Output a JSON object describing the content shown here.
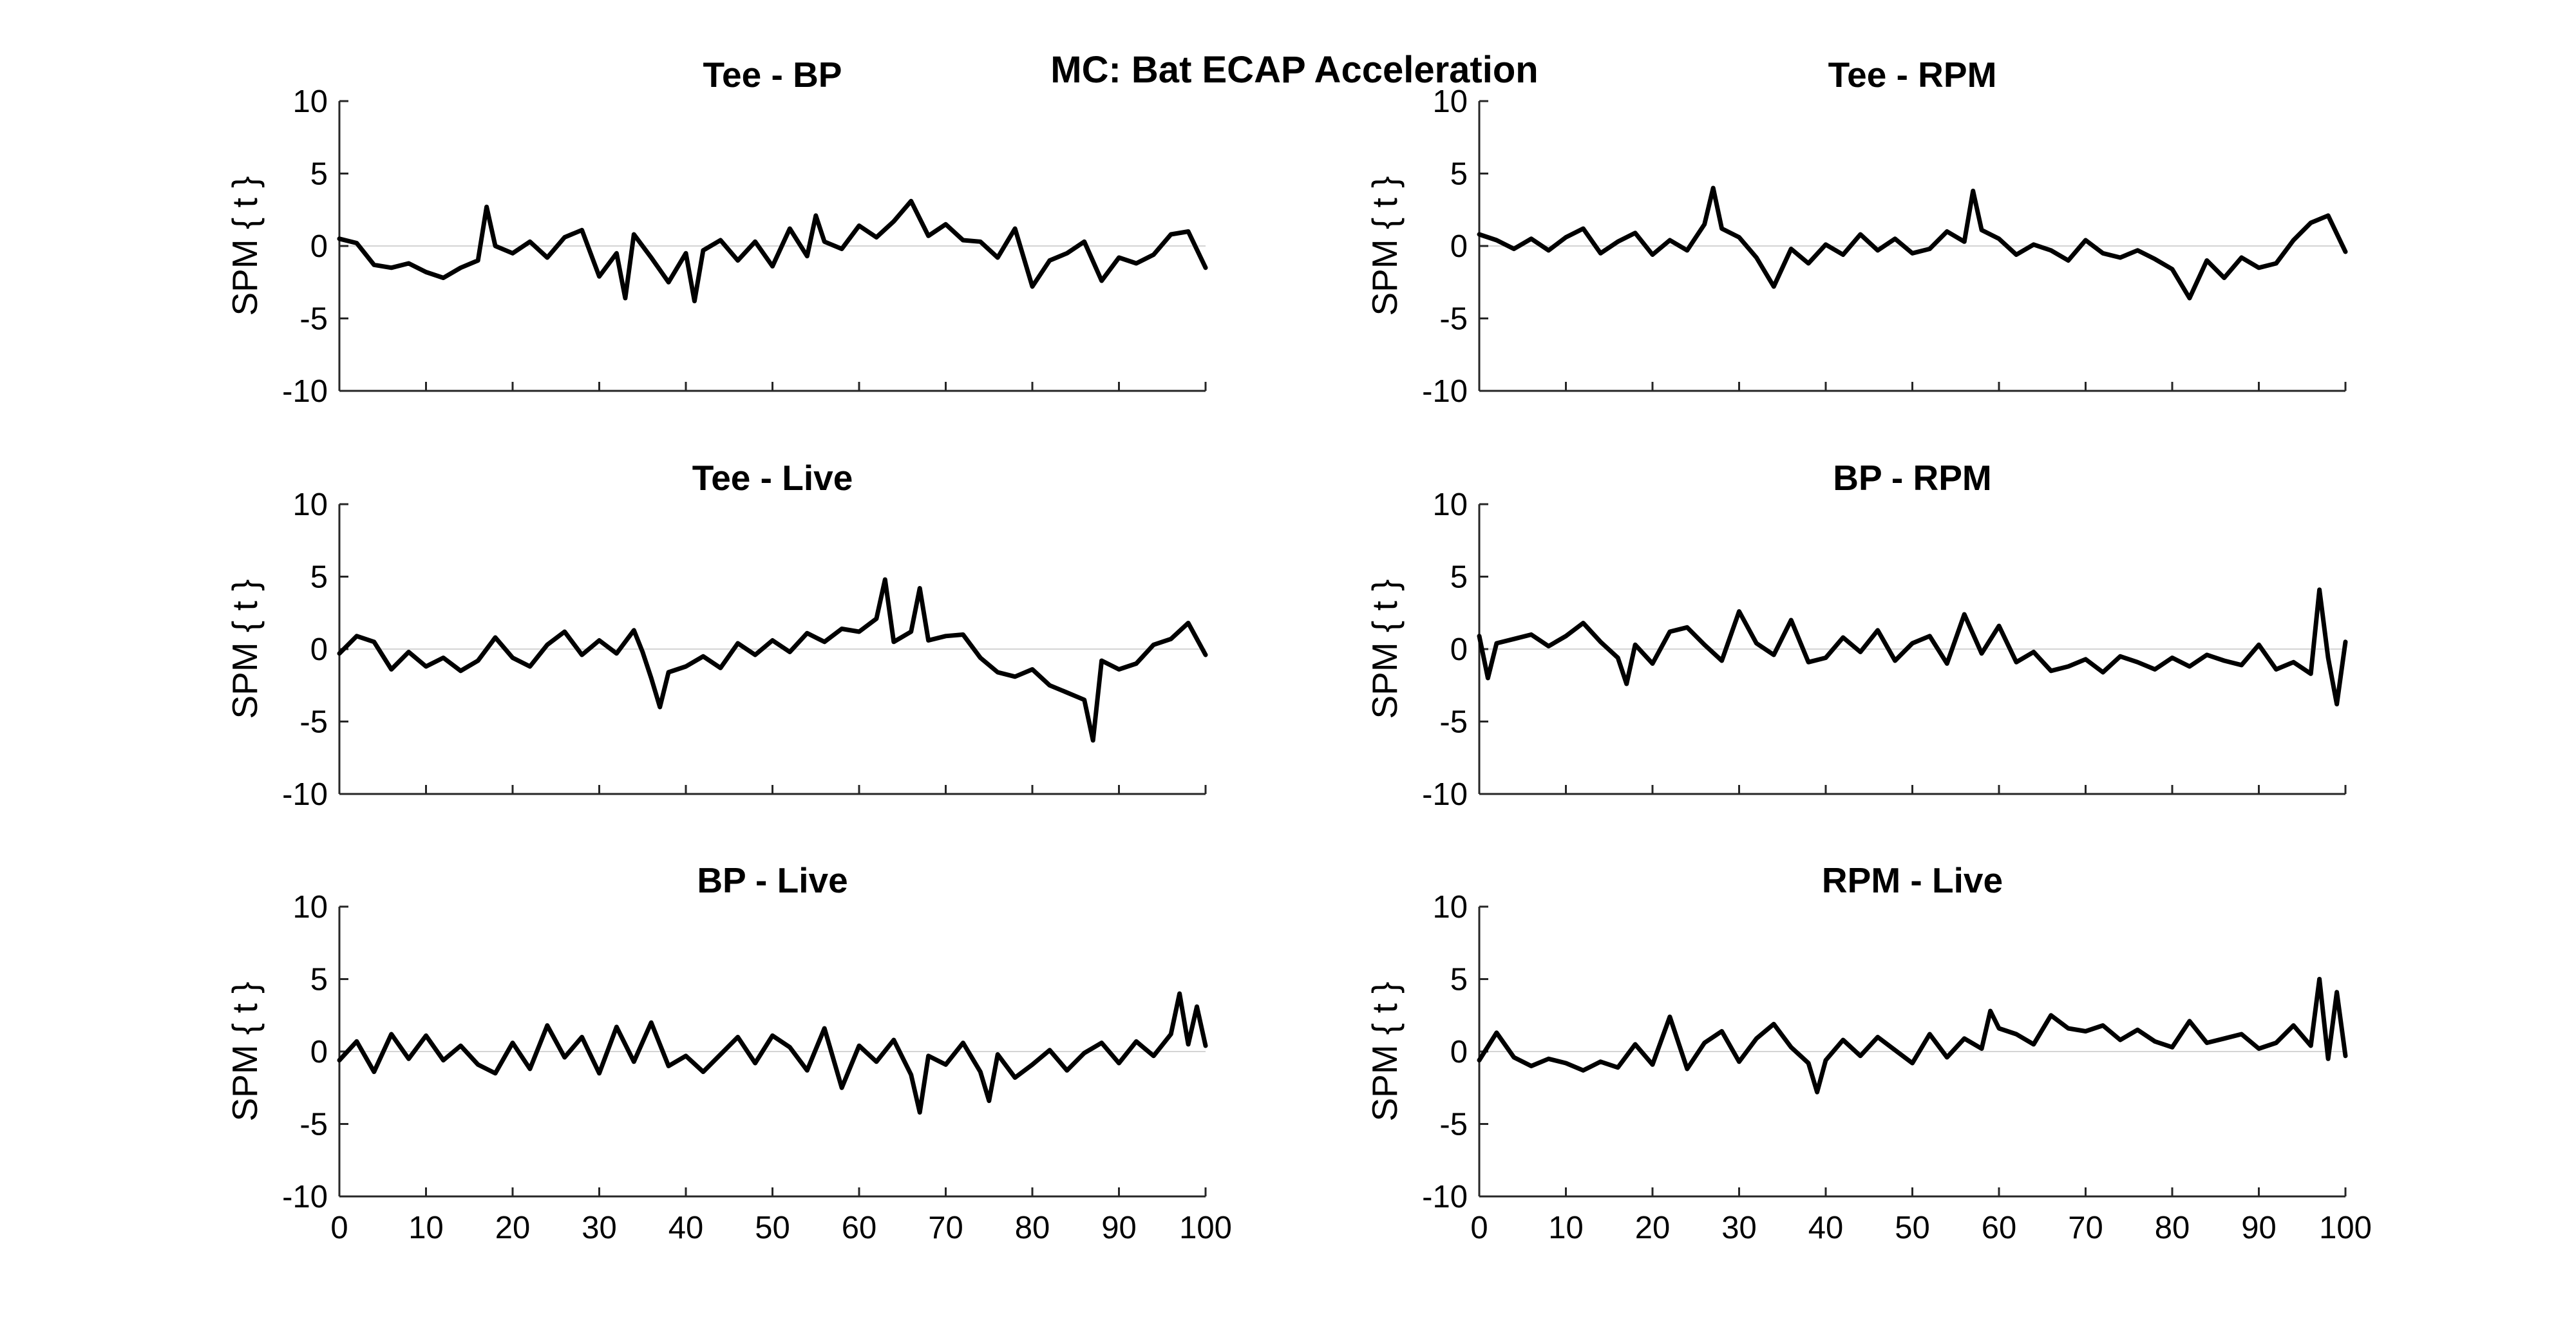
{
  "figure": {
    "title": "MC: Bat ECAP Acceleration"
  },
  "style": {
    "line_color": "#000000",
    "axis_color": "#262626",
    "zero_line_color": "#d4d4d4"
  },
  "chart_data": [
    {
      "type": "line",
      "title": "Tee - BP",
      "xlabel": "",
      "ylabel": "SPM { t }",
      "xlim": [
        0,
        100
      ],
      "ylim": [
        -10,
        10
      ],
      "yticks": [
        10,
        5,
        0,
        -5,
        -10
      ],
      "xticks": [],
      "zero_line": true,
      "series": [
        {
          "x": [
            0,
            2,
            4,
            6,
            8,
            10,
            12,
            14,
            16,
            17,
            18,
            20,
            22,
            24,
            26,
            28,
            30,
            32,
            33,
            34,
            36,
            38,
            40,
            41,
            42,
            44,
            46,
            48,
            50,
            52,
            54,
            55,
            56,
            58,
            60,
            62,
            64,
            66,
            68,
            70,
            72,
            74,
            76,
            78,
            80,
            82,
            84,
            86,
            88,
            90,
            92,
            94,
            96,
            98,
            100
          ],
          "y": [
            0.5,
            0.2,
            -1.3,
            -1.5,
            -1.2,
            -1.8,
            -2.2,
            -1.5,
            -1,
            2.7,
            0,
            -0.5,
            0.3,
            -0.8,
            0.6,
            1.1,
            -2.1,
            -0.5,
            -3.6,
            0.8,
            -0.8,
            -2.5,
            -0.5,
            -3.8,
            -0.3,
            0.4,
            -1,
            0.3,
            -1.4,
            1.2,
            -0.7,
            2.1,
            0.3,
            -0.2,
            1.4,
            0.6,
            1.7,
            3.1,
            0.7,
            1.5,
            0.4,
            0.3,
            -0.8,
            1.2,
            -2.8,
            -1,
            -0.5,
            0.3,
            -2.4,
            -0.8,
            -1.2,
            -0.6,
            0.8,
            1,
            -1.5
          ]
        }
      ]
    },
    {
      "type": "line",
      "title": "Tee - RPM",
      "xlabel": "",
      "ylabel": "SPM { t }",
      "xlim": [
        0,
        100
      ],
      "ylim": [
        -10,
        10
      ],
      "yticks": [
        10,
        5,
        0,
        -5,
        -10
      ],
      "xticks": [],
      "zero_line": true,
      "series": [
        {
          "x": [
            0,
            2,
            4,
            6,
            8,
            10,
            12,
            14,
            16,
            18,
            20,
            22,
            24,
            26,
            27,
            28,
            30,
            32,
            34,
            36,
            38,
            40,
            42,
            44,
            46,
            48,
            50,
            52,
            54,
            56,
            57,
            58,
            60,
            62,
            64,
            66,
            68,
            70,
            72,
            74,
            76,
            78,
            80,
            82,
            84,
            86,
            88,
            90,
            92,
            94,
            96,
            98,
            100
          ],
          "y": [
            0.8,
            0.4,
            -0.2,
            0.5,
            -0.3,
            0.6,
            1.2,
            -0.5,
            0.3,
            0.9,
            -0.6,
            0.4,
            -0.3,
            1.5,
            4,
            1.2,
            0.6,
            -0.8,
            -2.8,
            -0.2,
            -1.2,
            0.1,
            -0.6,
            0.8,
            -0.3,
            0.5,
            -0.5,
            -0.2,
            1,
            0.3,
            3.8,
            1.1,
            0.5,
            -0.6,
            0.1,
            -0.3,
            -1,
            0.4,
            -0.5,
            -0.8,
            -0.3,
            -0.9,
            -1.6,
            -3.6,
            -1,
            -2.2,
            -0.8,
            -1.5,
            -1.2,
            0.4,
            1.6,
            2.1,
            -0.4
          ]
        }
      ]
    },
    {
      "type": "line",
      "title": "Tee - Live",
      "xlabel": "",
      "ylabel": "SPM { t }",
      "xlim": [
        0,
        100
      ],
      "ylim": [
        -10,
        10
      ],
      "yticks": [
        10,
        5,
        0,
        -5,
        -10
      ],
      "xticks": [],
      "zero_line": true,
      "series": [
        {
          "x": [
            0,
            2,
            4,
            6,
            8,
            10,
            12,
            14,
            16,
            18,
            20,
            22,
            24,
            26,
            28,
            30,
            32,
            34,
            35,
            36,
            37,
            38,
            40,
            42,
            44,
            46,
            48,
            50,
            52,
            54,
            56,
            58,
            60,
            62,
            63,
            64,
            66,
            67,
            68,
            70,
            72,
            74,
            76,
            78,
            80,
            82,
            84,
            86,
            87,
            88,
            90,
            92,
            94,
            96,
            98,
            100
          ],
          "y": [
            -0.3,
            0.9,
            0.5,
            -1.4,
            -0.2,
            -1.2,
            -0.6,
            -1.5,
            -0.8,
            0.8,
            -0.6,
            -1.2,
            0.3,
            1.2,
            -0.4,
            0.6,
            -0.3,
            1.3,
            -0.2,
            -2,
            -4,
            -1.6,
            -1.2,
            -0.5,
            -1.3,
            0.4,
            -0.4,
            0.6,
            -0.2,
            1.1,
            0.5,
            1.4,
            1.2,
            2.1,
            4.8,
            0.5,
            1.2,
            4.2,
            0.6,
            0.9,
            1,
            -0.6,
            -1.6,
            -1.9,
            -1.4,
            -2.5,
            -3,
            -3.5,
            -6.3,
            -0.8,
            -1.4,
            -1,
            0.3,
            0.7,
            1.8,
            -0.4
          ]
        }
      ]
    },
    {
      "type": "line",
      "title": "BP - RPM",
      "xlabel": "",
      "ylabel": "SPM { t }",
      "xlim": [
        0,
        100
      ],
      "ylim": [
        -10,
        10
      ],
      "yticks": [
        10,
        5,
        0,
        -5,
        -10
      ],
      "xticks": [],
      "zero_line": true,
      "series": [
        {
          "x": [
            0,
            1,
            2,
            4,
            6,
            8,
            10,
            12,
            14,
            16,
            17,
            18,
            20,
            22,
            24,
            26,
            28,
            30,
            32,
            34,
            36,
            38,
            40,
            42,
            44,
            46,
            48,
            50,
            52,
            54,
            56,
            58,
            60,
            62,
            64,
            66,
            68,
            70,
            72,
            74,
            76,
            78,
            80,
            82,
            84,
            86,
            88,
            90,
            92,
            94,
            96,
            97,
            98,
            99,
            100
          ],
          "y": [
            0.9,
            -2,
            0.4,
            0.7,
            1,
            0.2,
            0.9,
            1.8,
            0.5,
            -0.6,
            -2.4,
            0.3,
            -1,
            1.2,
            1.5,
            0.3,
            -0.8,
            2.6,
            0.4,
            -0.4,
            2,
            -0.9,
            -0.6,
            0.8,
            -0.2,
            1.3,
            -0.8,
            0.4,
            0.9,
            -1,
            2.4,
            -0.3,
            1.6,
            -0.9,
            -0.2,
            -1.5,
            -1.2,
            -0.7,
            -1.6,
            -0.5,
            -0.9,
            -1.4,
            -0.6,
            -1.2,
            -0.4,
            -0.8,
            -1.1,
            0.3,
            -1.4,
            -0.9,
            -1.7,
            4.1,
            -0.6,
            -3.8,
            0.5
          ]
        }
      ]
    },
    {
      "type": "line",
      "title": "BP - Live",
      "xlabel": "",
      "ylabel": "SPM { t }",
      "xlim": [
        0,
        100
      ],
      "ylim": [
        -10,
        10
      ],
      "yticks": [
        10,
        5,
        0,
        -5,
        -10
      ],
      "xticks": [
        0,
        10,
        20,
        30,
        40,
        50,
        60,
        70,
        80,
        90,
        100
      ],
      "zero_line": true,
      "series": [
        {
          "x": [
            0,
            2,
            4,
            6,
            8,
            10,
            12,
            14,
            16,
            18,
            20,
            22,
            24,
            26,
            28,
            30,
            32,
            34,
            36,
            38,
            40,
            42,
            44,
            46,
            48,
            50,
            52,
            54,
            56,
            58,
            60,
            62,
            64,
            66,
            67,
            68,
            70,
            72,
            74,
            75,
            76,
            78,
            80,
            82,
            84,
            86,
            88,
            90,
            92,
            94,
            96,
            97,
            98,
            99,
            100
          ],
          "y": [
            -0.6,
            0.7,
            -1.4,
            1.2,
            -0.5,
            1.1,
            -0.6,
            0.4,
            -0.9,
            -1.5,
            0.6,
            -1.2,
            1.8,
            -0.4,
            1,
            -1.5,
            1.7,
            -0.7,
            2,
            -1,
            -0.3,
            -1.4,
            -0.2,
            1,
            -0.8,
            1.1,
            0.3,
            -1.3,
            1.6,
            -2.5,
            0.4,
            -0.7,
            0.8,
            -1.6,
            -4.2,
            -0.3,
            -0.9,
            0.6,
            -1.4,
            -3.4,
            -0.2,
            -1.8,
            -0.9,
            0.1,
            -1.3,
            -0.1,
            0.6,
            -0.8,
            0.7,
            -0.3,
            1.2,
            4,
            0.5,
            3.1,
            0.4
          ]
        }
      ]
    },
    {
      "type": "line",
      "title": "RPM - Live",
      "xlabel": "",
      "ylabel": "SPM { t }",
      "xlim": [
        0,
        100
      ],
      "ylim": [
        -10,
        10
      ],
      "yticks": [
        10,
        5,
        0,
        -5,
        -10
      ],
      "xticks": [
        0,
        10,
        20,
        30,
        40,
        50,
        60,
        70,
        80,
        90,
        100
      ],
      "zero_line": true,
      "series": [
        {
          "x": [
            0,
            2,
            4,
            6,
            8,
            10,
            12,
            14,
            16,
            18,
            20,
            22,
            24,
            26,
            28,
            30,
            32,
            34,
            36,
            38,
            39,
            40,
            42,
            44,
            46,
            48,
            50,
            52,
            54,
            56,
            58,
            59,
            60,
            62,
            64,
            66,
            68,
            70,
            72,
            74,
            76,
            78,
            80,
            82,
            84,
            86,
            88,
            90,
            92,
            94,
            96,
            97,
            98,
            99,
            100
          ],
          "y": [
            -0.6,
            1.3,
            -0.4,
            -1,
            -0.5,
            -0.8,
            -1.3,
            -0.7,
            -1.1,
            0.5,
            -0.9,
            2.4,
            -1.2,
            0.6,
            1.4,
            -0.7,
            0.9,
            1.9,
            0.3,
            -0.8,
            -2.8,
            -0.6,
            0.8,
            -0.3,
            1,
            0.1,
            -0.8,
            1.2,
            -0.4,
            0.9,
            0.2,
            2.8,
            1.6,
            1.2,
            0.5,
            2.5,
            1.6,
            1.4,
            1.8,
            0.8,
            1.5,
            0.7,
            0.3,
            2.1,
            0.6,
            0.9,
            1.2,
            0.2,
            0.6,
            1.8,
            0.4,
            5,
            -0.5,
            4.1,
            -0.3
          ]
        }
      ]
    }
  ]
}
